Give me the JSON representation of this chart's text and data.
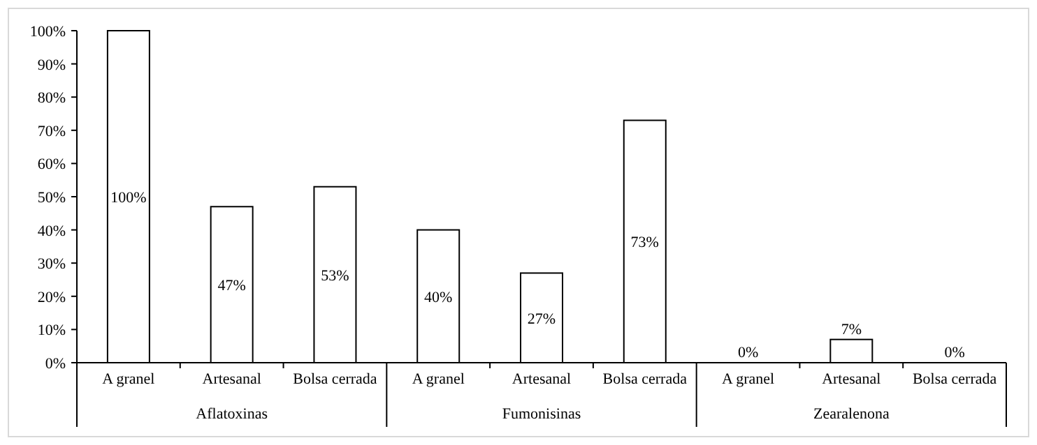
{
  "chart_data": {
    "type": "bar",
    "categories": [
      "A granel",
      "Artesanal",
      "Bolsa cerrada",
      "A granel",
      "Artesanal",
      "Bolsa cerrada",
      "A granel",
      "Artesanal",
      "Bolsa cerrada"
    ],
    "values": [
      100,
      47,
      53,
      40,
      27,
      73,
      0,
      7,
      0
    ],
    "value_labels": [
      "100%",
      "47%",
      "53%",
      "40%",
      "27%",
      "73%",
      "0%",
      "7%",
      "0%"
    ],
    "color": "#ffffff",
    "annotations": [
      "Aflatoxinas",
      "Fumonisinas",
      "Zearalenona"
    ],
    "ylim": [
      0,
      100
    ],
    "yticks": [
      {
        "value": 0,
        "label": "0%"
      },
      {
        "value": 10,
        "label": "10%"
      },
      {
        "value": 20,
        "label": "20%"
      },
      {
        "value": 30,
        "label": "30%"
      },
      {
        "value": 40,
        "label": "40%"
      },
      {
        "value": 50,
        "label": "50%"
      },
      {
        "value": 60,
        "label": "60%"
      },
      {
        "value": 70,
        "label": "70%"
      },
      {
        "value": 80,
        "label": "80%"
      },
      {
        "value": 90,
        "label": "90%"
      },
      {
        "value": 100,
        "label": "100%"
      }
    ],
    "grid": false
  }
}
